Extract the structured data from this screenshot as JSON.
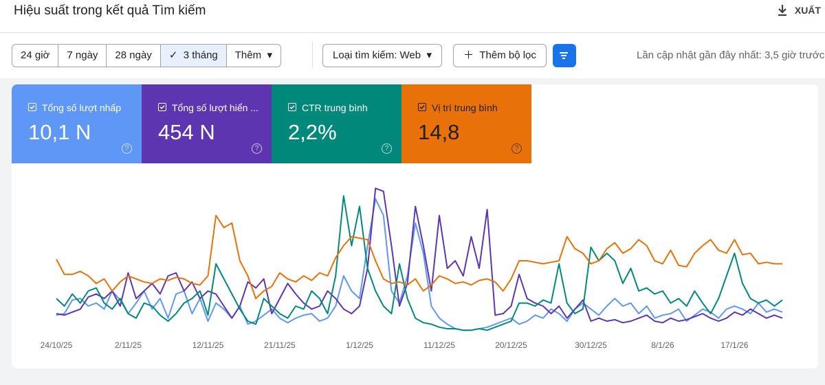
{
  "header": {
    "title": "Hiệu suất trong kết quả Tìm kiếm",
    "export": "XUẤT"
  },
  "toolbar": {
    "ranges": [
      "24 giờ",
      "7 ngày",
      "28 ngày",
      "3 tháng",
      "Thêm"
    ],
    "selected": 3,
    "search_type": "Loại tìm kiếm: Web",
    "add_filter": "Thêm bộ lọc",
    "last_updated": "Lần cập nhật gần đây nhất: 3,5 giờ trước"
  },
  "chart_data": {
    "type": "line",
    "categories": [
      "24/10/25",
      null,
      null,
      null,
      null,
      null,
      null,
      null,
      null,
      "2/11/25",
      null,
      null,
      null,
      null,
      null,
      null,
      null,
      null,
      null,
      "12/11/25",
      null,
      null,
      null,
      null,
      null,
      null,
      null,
      null,
      "21/11/25",
      null,
      null,
      null,
      null,
      null,
      null,
      null,
      null,
      null,
      "1/12/25",
      null,
      null,
      null,
      null,
      null,
      null,
      null,
      null,
      null,
      "11/12/25",
      null,
      null,
      null,
      null,
      null,
      null,
      null,
      null,
      "20/12/25",
      null,
      null,
      null,
      null,
      null,
      null,
      null,
      null,
      null,
      "30/12/25",
      null,
      null,
      null,
      null,
      null,
      null,
      null,
      null,
      "8/1/26",
      null,
      null,
      null,
      null,
      null,
      null,
      null,
      null,
      "17/1/26",
      null,
      null,
      null,
      null,
      null,
      null
    ],
    "ylim": [
      0,
      100
    ],
    "series": [
      {
        "name": "Tổng số lượt nhấp",
        "total": "10,1 N",
        "color": "#5e97f6",
        "values": [
          14,
          15,
          24,
          25,
          20,
          22,
          18,
          30,
          24,
          15,
          22,
          30,
          18,
          25,
          12,
          28,
          30,
          15,
          25,
          10,
          22,
          18,
          12,
          20,
          8,
          10,
          14,
          18,
          12,
          9,
          12,
          14,
          15,
          10,
          12,
          20,
          40,
          30,
          25,
          60,
          91,
          80,
          30,
          22,
          40,
          75,
          55,
          20,
          12,
          8,
          5,
          4,
          4,
          5,
          6,
          8,
          10,
          12,
          8,
          10,
          14,
          12,
          18,
          15,
          10,
          18,
          22,
          18,
          14,
          20,
          25,
          20,
          22,
          15,
          20,
          12,
          14,
          15,
          18,
          10,
          14,
          18,
          16,
          12,
          18,
          20,
          18,
          15,
          22,
          16,
          18,
          16
        ]
      },
      {
        "name": "Tổng số lượt hiển ...",
        "total": "454 N",
        "color": "#5e35b1",
        "values": [
          15,
          14,
          16,
          18,
          26,
          28,
          25,
          30,
          20,
          42,
          25,
          30,
          35,
          28,
          40,
          42,
          30,
          36,
          25,
          30,
          28,
          20,
          12,
          20,
          36,
          32,
          38,
          15,
          25,
          35,
          28,
          22,
          18,
          20,
          30,
          25,
          18,
          15,
          20,
          45,
          98,
          96,
          60,
          20,
          35,
          86,
          60,
          30,
          80,
          45,
          50,
          40,
          66,
          45,
          84,
          14,
          15,
          20,
          41,
          25,
          22,
          20,
          15,
          20,
          12,
          18,
          24,
          10,
          12,
          10,
          11,
          9,
          10,
          12,
          14,
          10,
          9,
          12,
          10,
          11,
          13,
          15,
          12,
          10,
          12,
          16,
          14,
          18,
          15,
          12,
          14,
          12
        ]
      },
      {
        "name": "CTR trung bình",
        "total": "2,2%",
        "color": "#00897b",
        "values": [
          25,
          20,
          28,
          22,
          30,
          32,
          22,
          18,
          25,
          15,
          12,
          22,
          20,
          14,
          10,
          15,
          22,
          25,
          30,
          14,
          48,
          38,
          28,
          18,
          10,
          8,
          25,
          20,
          15,
          12,
          20,
          18,
          30,
          25,
          15,
          40,
          93,
          60,
          86,
          45,
          30,
          20,
          15,
          48,
          25,
          12,
          9,
          8,
          6,
          5,
          5,
          4,
          4,
          5,
          4,
          6,
          8,
          10,
          22,
          22,
          20,
          24,
          22,
          48,
          22,
          15,
          18,
          59,
          50,
          55,
          50,
          35,
          45,
          30,
          32,
          28,
          30,
          22,
          25,
          20,
          30,
          22,
          15,
          25,
          40,
          55,
          35,
          25,
          22,
          24,
          20,
          24
        ]
      },
      {
        "name": "Vị trí trung bình",
        "total": "14,8",
        "color": "#e8710a",
        "values": [
          51,
          41,
          41,
          43,
          40,
          35,
          38,
          30,
          36,
          40,
          38,
          36,
          35,
          38,
          37,
          39,
          38,
          35,
          34,
          40,
          80,
          72,
          75,
          50,
          40,
          25,
          30,
          33,
          42,
          38,
          36,
          40,
          37,
          42,
          40,
          52,
          60,
          66,
          65,
          64,
          50,
          38,
          35,
          36,
          34,
          38,
          30,
          34,
          40,
          38,
          35,
          36,
          34,
          37,
          38,
          36,
          30,
          38,
          50,
          50,
          49,
          48,
          49,
          50,
          66,
          58,
          55,
          48,
          50,
          58,
          62,
          55,
          58,
          64,
          60,
          50,
          48,
          57,
          47,
          46,
          55,
          60,
          64,
          57,
          55,
          64,
          54,
          55,
          48,
          49,
          48,
          48
        ]
      }
    ]
  }
}
